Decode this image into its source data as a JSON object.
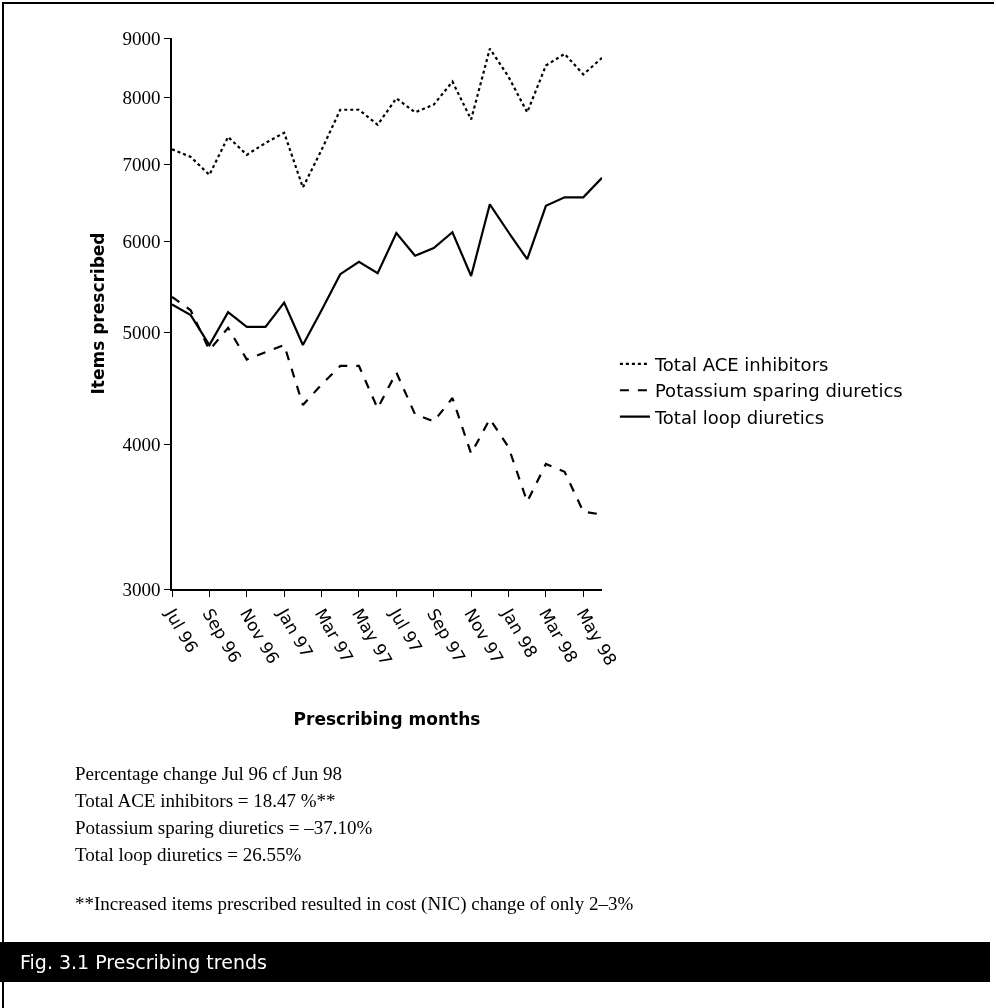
{
  "chart_data": {
    "type": "line",
    "title": "Fig. 3.1 Prescribing trends",
    "xlabel": "Prescribing months",
    "ylabel": "Items prescribed",
    "categories": [
      "Jul 96",
      null,
      "Sep 96",
      null,
      "Nov 96",
      null,
      "Jan 97",
      null,
      "Mar 97",
      null,
      "May 97",
      null,
      "Jul 97",
      null,
      "Sep 97",
      null,
      "Nov 97",
      null,
      "Jan 98",
      null,
      "Mar 98",
      null,
      "May 98",
      null
    ],
    "series": [
      {
        "name": "Total ACE inhibitors",
        "color": "#000000",
        "line_style": "dotted",
        "values": [
          7210,
          7100,
          6850,
          7390,
          7130,
          7300,
          7450,
          6680,
          7200,
          7800,
          7800,
          7570,
          7980,
          7760,
          7880,
          8250,
          7650,
          8810,
          8330,
          7760,
          8520,
          8720,
          8370,
          8650
        ]
      },
      {
        "name": "Potassium sparing diuretics",
        "color": "#000000",
        "line_style": "dashed",
        "values": [
          5370,
          5230,
          4830,
          5050,
          4740,
          4810,
          4880,
          4330,
          4510,
          4680,
          4680,
          4300,
          4620,
          4250,
          4190,
          4390,
          3930,
          4210,
          3980,
          3570,
          3850,
          3790,
          3500,
          3480
        ]
      },
      {
        "name": "Total loop diuretics",
        "color": "#000000",
        "line_style": "solid",
        "values": [
          5290,
          5180,
          4880,
          5210,
          5060,
          5060,
          5310,
          4880,
          5230,
          5620,
          5760,
          5630,
          6100,
          5830,
          5920,
          6110,
          5600,
          6460,
          6110,
          5790,
          6440,
          6550,
          6550,
          6810
        ]
      }
    ],
    "log": true,
    "ylim": [
      3000,
      9000
    ],
    "yticks": [
      3000,
      4000,
      5000,
      6000,
      7000,
      8000,
      9000
    ],
    "grid": false,
    "legend": "right",
    "marker": "none",
    "annotations": [
      "Percentage change Jul 96 cf Jun 98",
      "Total ACE inhibitors = 18.47 %**",
      "Potassium sparing diuretics = –37.10%",
      "Total loop diuretics = 26.55%",
      "**Increased items prescribed resulted in cost (NIC) change of only 2–3%"
    ]
  }
}
